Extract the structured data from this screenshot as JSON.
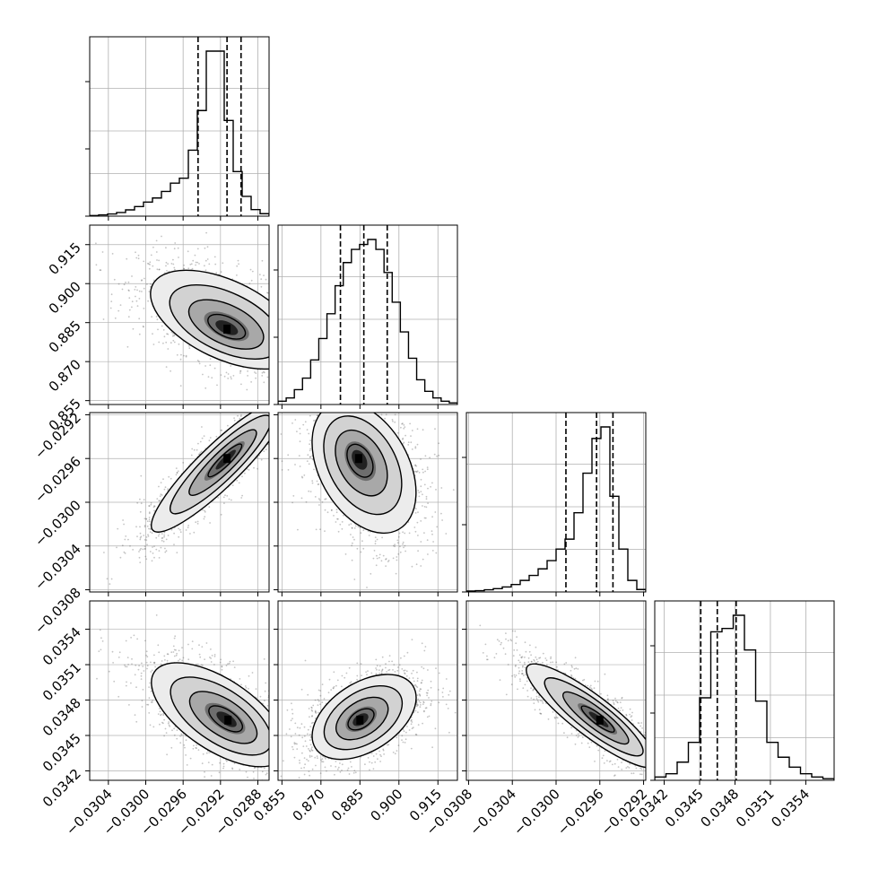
{
  "chart_data": {
    "type": "corner",
    "n_params": 4,
    "params": [
      {
        "range": [
          -0.0306,
          -0.02868
        ],
        "ticks": [
          -0.0304,
          -0.03,
          -0.0296,
          -0.0292,
          -0.0288
        ],
        "tick_labels": [
          "−0.0304",
          "−0.0300",
          "−0.0296",
          "−0.0292",
          "−0.0288"
        ],
        "quantiles": [
          -0.02944,
          -0.02913,
          -0.02898
        ],
        "hist": [
          0.004,
          0.008,
          0.013,
          0.022,
          0.038,
          0.058,
          0.085,
          0.11,
          0.15,
          0.2,
          0.23,
          0.4,
          0.64,
          1.0,
          1.0,
          0.58,
          0.27,
          0.12,
          0.04,
          0.015
        ]
      },
      {
        "range": [
          0.8535,
          0.9225
        ],
        "ticks": [
          0.855,
          0.87,
          0.885,
          0.9,
          0.915
        ],
        "tick_labels": [
          "0.855",
          "0.870",
          "0.885",
          "0.900",
          "0.915"
        ],
        "quantiles": [
          0.8775,
          0.8865,
          0.8955
        ],
        "hist": [
          0.02,
          0.04,
          0.09,
          0.16,
          0.27,
          0.4,
          0.55,
          0.72,
          0.86,
          0.94,
          0.97,
          1.0,
          0.94,
          0.8,
          0.62,
          0.44,
          0.28,
          0.15,
          0.08,
          0.04,
          0.02,
          0.01
        ]
      },
      {
        "range": [
          -0.03082,
          -0.02918
        ],
        "ticks": [
          -0.0308,
          -0.0304,
          -0.03,
          -0.0296,
          -0.0292
        ],
        "tick_labels": [
          "−0.0308",
          "−0.0304",
          "−0.0300",
          "−0.0296",
          "−0.0292"
        ],
        "quantiles": [
          -0.02991,
          -0.02963,
          -0.02948
        ],
        "hist": [
          0.006,
          0.008,
          0.013,
          0.02,
          0.03,
          0.045,
          0.07,
          0.1,
          0.14,
          0.19,
          0.26,
          0.32,
          0.48,
          0.72,
          0.93,
          1.0,
          0.58,
          0.26,
          0.07,
          0.015
        ]
      },
      {
        "range": [
          0.03412,
          0.03564
        ],
        "ticks": [
          0.0342,
          0.0345,
          0.0348,
          0.0351,
          0.0354
        ],
        "tick_labels": [
          "0.0342",
          "0.0345",
          "0.0348",
          "0.0351",
          "0.0354"
        ],
        "quantiles": [
          0.03451,
          0.03465,
          0.03481
        ],
        "hist": [
          0.02,
          0.04,
          0.11,
          0.23,
          0.5,
          0.9,
          0.92,
          1.0,
          0.79,
          0.48,
          0.23,
          0.14,
          0.08,
          0.04,
          0.02,
          0.01
        ]
      }
    ],
    "pairs": [
      {
        "i": 1,
        "j": 0,
        "mean": [
          -0.02915,
          0.8865
        ],
        "sd": [
          0.0004,
          0.0095
        ],
        "rho": -0.52,
        "peak": [
          -0.02913,
          0.8825
        ],
        "n": 1500
      },
      {
        "i": 2,
        "j": 0,
        "mean": [
          -0.02923,
          -0.02968
        ],
        "sd": [
          0.00036,
          0.0003
        ],
        "rho": 0.9,
        "peak": [
          -0.02913,
          -0.0296
        ],
        "n": 1500
      },
      {
        "i": 2,
        "j": 1,
        "mean": [
          0.8868,
          -0.02969
        ],
        "sd": [
          0.01,
          0.0003
        ],
        "rho": -0.38,
        "peak": [
          0.8845,
          -0.0296
        ],
        "n": 1500
      },
      {
        "i": 3,
        "j": 0,
        "mean": [
          -0.02923,
          0.03468
        ],
        "sd": [
          0.00036,
          0.00022
        ],
        "rho": -0.62,
        "peak": [
          -0.02912,
          0.03463
        ],
        "n": 1500
      },
      {
        "i": 3,
        "j": 1,
        "mean": [
          0.8868,
          0.03466
        ],
        "sd": [
          0.01,
          0.00018
        ],
        "rho": 0.45,
        "peak": [
          0.885,
          0.03463
        ],
        "n": 1500
      },
      {
        "i": 3,
        "j": 2,
        "mean": [
          -0.02968,
          0.03467
        ],
        "sd": [
          0.0003,
          0.00022
        ],
        "rho": -0.88,
        "peak": [
          -0.0296,
          0.03463
        ],
        "n": 1500
      }
    ],
    "grid": true,
    "colors": {
      "hist_line": "#000000",
      "contour": "#000000",
      "points": "#555555",
      "grid": "#b0b0b0",
      "frame": "#000000"
    }
  }
}
